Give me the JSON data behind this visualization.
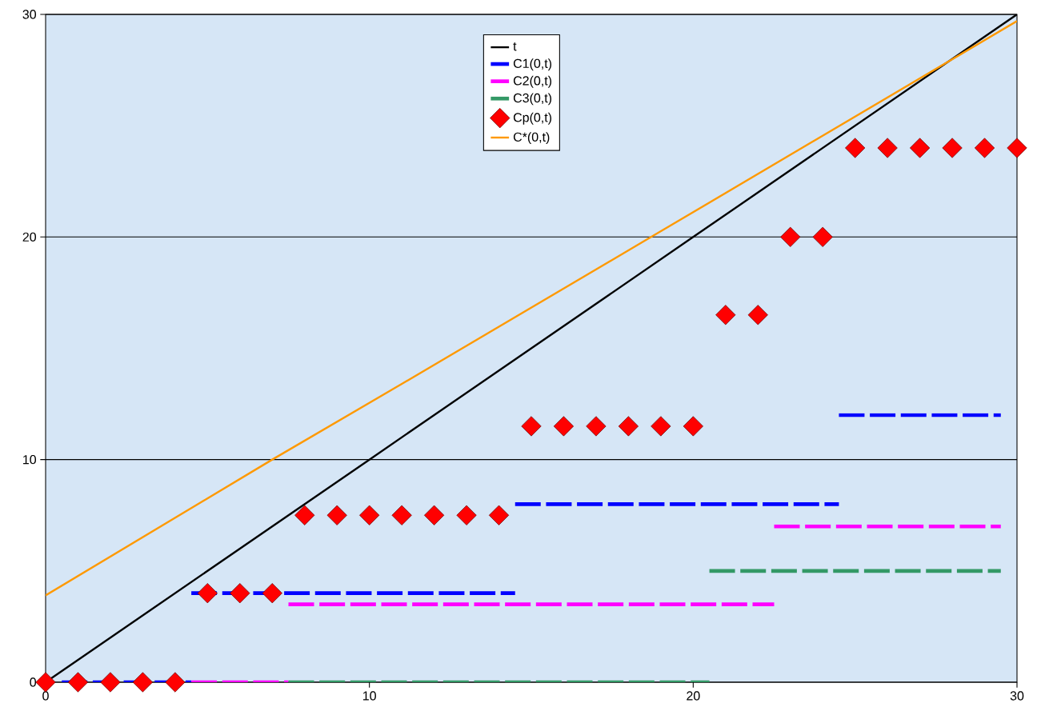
{
  "chart_data": {
    "type": "line",
    "xlim": [
      0,
      30
    ],
    "ylim": [
      0,
      30
    ],
    "xticks": [
      0,
      10,
      20,
      30
    ],
    "yticks": [
      0,
      10,
      20,
      30
    ],
    "grid": "y",
    "legend": "top",
    "series": [
      {
        "name": "t",
        "color": "#000000",
        "line_style": "solid",
        "marker": "none",
        "x": [
          0,
          10,
          20,
          30
        ],
        "values": [
          0,
          10,
          20,
          30
        ]
      },
      {
        "name": "C1(0,t)",
        "color": "#0000ff",
        "line_style": "dashed",
        "marker": "none",
        "x": [
          0.5,
          4.5,
          null,
          4.5,
          14.5,
          null,
          14.5,
          24.5,
          null,
          24.5,
          29.5
        ],
        "values": [
          0,
          0,
          null,
          4,
          4,
          null,
          8,
          8,
          null,
          12,
          12
        ]
      },
      {
        "name": "C2(0,t)",
        "color": "#ff00ff",
        "line_style": "dashed",
        "marker": "none",
        "x": [
          4.5,
          7.5,
          null,
          7.5,
          22.5,
          null,
          22.5,
          29.5
        ],
        "values": [
          0,
          0,
          null,
          3.5,
          3.5,
          null,
          7,
          7
        ]
      },
      {
        "name": "C3(0,t)",
        "color": "#339966",
        "line_style": "dashed",
        "marker": "none",
        "x": [
          7.5,
          20.5,
          null,
          20.5,
          29.5
        ],
        "values": [
          0,
          0,
          null,
          5,
          5
        ]
      },
      {
        "name": "Cp(0,t)",
        "type": "scatter",
        "color": "#ff0000",
        "marker": "diamond",
        "x": [
          0,
          1,
          2,
          3,
          4,
          5,
          6,
          7,
          8,
          9,
          10,
          11,
          12,
          13,
          14,
          15,
          16,
          17,
          18,
          19,
          20,
          21,
          22,
          23,
          24,
          25,
          26,
          27,
          28,
          29,
          30
        ],
        "values": [
          0,
          0,
          0,
          0,
          0,
          4,
          4,
          4,
          7.5,
          7.5,
          7.5,
          7.5,
          7.5,
          7.5,
          7.5,
          11.5,
          11.5,
          11.5,
          11.5,
          11.5,
          11.5,
          16.5,
          16.5,
          20,
          20,
          24,
          24,
          24,
          24,
          24,
          24
        ]
      },
      {
        "name": "C*(0,t)",
        "color": "#ff9900",
        "line_style": "solid",
        "marker": "none",
        "x": [
          0,
          7,
          11,
          18.7,
          30
        ],
        "values": [
          3.9,
          10,
          13.4,
          20,
          29.7
        ]
      }
    ]
  }
}
